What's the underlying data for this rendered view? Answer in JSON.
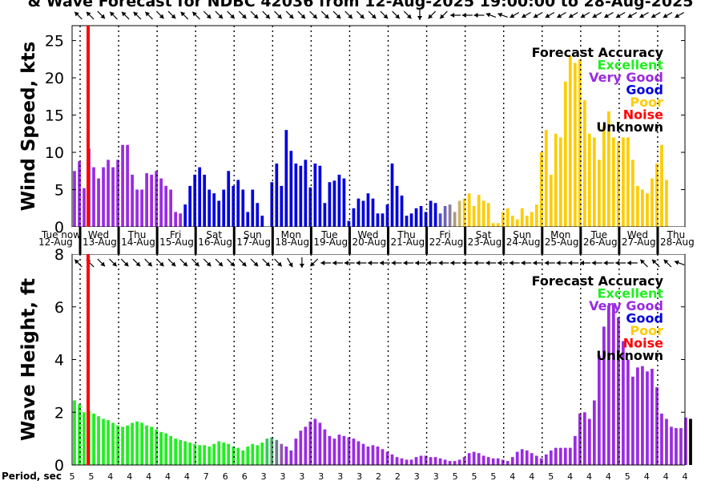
{
  "title": "& Wave Forecast for NDBC 42036 from 12-Aug-2025 19:00:00 to 28-Aug-2025",
  "legend": {
    "heading": "Forecast Accuracy",
    "items": [
      {
        "label": "Excellent",
        "color": "#22ee22"
      },
      {
        "label": "Very Good",
        "color": "#9a2be2"
      },
      {
        "label": "Good",
        "color": "#0000dd"
      },
      {
        "label": "Poor",
        "color": "#ffcc00"
      },
      {
        "label": "Noise",
        "color": "#ff0000"
      },
      {
        "label": "Unknown",
        "color": "#000000"
      }
    ]
  },
  "period_label": "Period, sec",
  "now_marker": {
    "label": "Tue now",
    "color": "#ff0000",
    "time_hours": 10
  },
  "x_axis": {
    "start_hours": 0,
    "end_hours": 382,
    "day_boundaries_hours": [
      5,
      29,
      53,
      77,
      101,
      125,
      149,
      173,
      197,
      221,
      245,
      269,
      293,
      317,
      341,
      365
    ],
    "tick_labels": [
      {
        "hours": 0,
        "day": "Tue",
        "date": "12-Aug"
      },
      {
        "hours": 5,
        "day": "Wed",
        "date": "13-Aug"
      },
      {
        "hours": 29,
        "day": "Thu",
        "date": "14-Aug"
      },
      {
        "hours": 53,
        "day": "Fri",
        "date": "15-Aug"
      },
      {
        "hours": 77,
        "day": "Sat",
        "date": "16-Aug"
      },
      {
        "hours": 101,
        "day": "Sun",
        "date": "17-Aug"
      },
      {
        "hours": 125,
        "day": "Mon",
        "date": "18-Aug"
      },
      {
        "hours": 149,
        "day": "Tue",
        "date": "19-Aug"
      },
      {
        "hours": 173,
        "day": "Wed",
        "date": "20-Aug"
      },
      {
        "hours": 197,
        "day": "Thu",
        "date": "21-Aug"
      },
      {
        "hours": 221,
        "day": "Fri",
        "date": "22-Aug"
      },
      {
        "hours": 245,
        "day": "Sat",
        "date": "23-Aug"
      },
      {
        "hours": 269,
        "day": "Sun",
        "date": "24-Aug"
      },
      {
        "hours": 293,
        "day": "Mon",
        "date": "25-Aug"
      },
      {
        "hours": 317,
        "day": "Tue",
        "date": "26-Aug"
      },
      {
        "hours": 341,
        "day": "Wed",
        "date": "27-Aug"
      },
      {
        "hours": 365,
        "day": "Thu",
        "date": "28-Aug"
      }
    ]
  },
  "chart_data": [
    {
      "type": "bar",
      "title": "",
      "xlabel": "",
      "ylabel": "Wind Speed, kts",
      "ylim": [
        0,
        27
      ],
      "yticks": [
        0,
        5,
        10,
        15,
        20,
        25
      ],
      "grid": "dotted vertical day lines",
      "legend_position": "top-right",
      "bar_interval_hours": 3,
      "values": [
        7.5,
        8.8,
        5.2,
        10.5,
        8.0,
        6.5,
        8.0,
        9.0,
        8.0,
        9.0,
        11.0,
        11.0,
        7.0,
        5.0,
        5.0,
        7.2,
        7.0,
        7.5,
        6.5,
        5.5,
        5.0,
        2.0,
        1.8,
        3.0,
        5.5,
        7.0,
        8.0,
        7.0,
        5.0,
        4.5,
        3.5,
        5.0,
        7.5,
        5.5,
        6.3,
        5.0,
        2.0,
        5.0,
        3.2,
        1.5,
        0.0,
        6.0,
        8.5,
        5.5,
        13.0,
        10.2,
        8.5,
        8.2,
        9.0,
        5.3,
        8.5,
        8.2,
        3.2,
        6.0,
        6.2,
        7.0,
        6.5,
        0.8,
        2.5,
        3.8,
        3.5,
        4.5,
        3.8,
        1.8,
        1.8,
        3.0,
        8.5,
        5.5,
        4.2,
        1.5,
        1.8,
        2.5,
        2.8,
        2.0,
        3.5,
        3.2,
        1.8,
        2.8,
        3.0,
        2.0,
        3.5,
        3.8,
        4.5,
        2.8,
        4.3,
        3.5,
        3.2,
        0.5,
        0.5,
        2.0,
        2.5,
        1.5,
        1.0,
        2.5,
        1.5,
        2.0,
        3.0,
        10.0,
        13.0,
        7.0,
        12.5,
        12.0,
        19.5,
        23.0,
        22.0,
        22.5,
        17.0,
        12.5,
        12.0,
        9.0,
        13.5,
        15.5,
        12.0,
        11.5,
        12.0,
        12.0,
        9.0,
        5.5,
        5.0,
        4.5,
        6.5,
        8.5,
        11.0,
        6.3
      ],
      "colors": [
        "#9a2be2",
        "#9a2be2",
        "#9a2be2",
        "#9a2be2",
        "#9a2be2",
        "#9a2be2",
        "#9a2be2",
        "#9a2be2",
        "#9a2be2",
        "#9a2be2",
        "#9a2be2",
        "#9a2be2",
        "#9a2be2",
        "#9a2be2",
        "#9a2be2",
        "#9a2be2",
        "#9a2be2",
        "#9a2be2",
        "#9a2be2",
        "#9a2be2",
        "#9a2be2",
        "#9a2be2",
        "#9a2be2",
        "#0000dd",
        "#0000dd",
        "#0000dd",
        "#0000dd",
        "#0000dd",
        "#0000dd",
        "#0000dd",
        "#0000dd",
        "#0000dd",
        "#0000dd",
        "#0000dd",
        "#0000dd",
        "#0000dd",
        "#0000dd",
        "#0000dd",
        "#0000dd",
        "#0000dd",
        "#0000dd",
        "#0000dd",
        "#0000dd",
        "#0000dd",
        "#0000dd",
        "#0000dd",
        "#0000dd",
        "#0000dd",
        "#0000dd",
        "#0000dd",
        "#0000dd",
        "#0000dd",
        "#0000dd",
        "#0000dd",
        "#0000dd",
        "#0000dd",
        "#0000dd",
        "#0000dd",
        "#0000dd",
        "#0000dd",
        "#0000dd",
        "#0000dd",
        "#0000dd",
        "#0000dd",
        "#0000dd",
        "#0000dd",
        "#0000dd",
        "#0000dd",
        "#0000dd",
        "#0000dd",
        "#0000dd",
        "#0000dd",
        "#0000dd",
        "#0000dd",
        "#0000dd",
        "#0000dd",
        "#4b4bd8",
        "#6b62bb",
        "#8b7e9d",
        "#ab9a80",
        "#cbb562",
        "#ffcc00",
        "#ffcc00",
        "#ffcc00",
        "#ffcc00",
        "#ffcc00",
        "#ffcc00",
        "#ffcc00",
        "#ffcc00",
        "#ffcc00",
        "#ffcc00",
        "#ffcc00",
        "#ffcc00",
        "#ffcc00",
        "#ffcc00",
        "#ffcc00",
        "#ffcc00",
        "#ffcc00",
        "#ffcc00",
        "#ffcc00",
        "#ffcc00",
        "#ffcc00",
        "#ffcc00",
        "#ffcc00",
        "#ffcc00",
        "#ffcc00",
        "#ffcc00",
        "#ffcc00",
        "#ffcc00",
        "#ffcc00",
        "#ffcc00",
        "#ffcc00",
        "#ffcc00",
        "#ffcc00",
        "#ffcc00",
        "#ffcc00",
        "#ffcc00",
        "#ffcc00",
        "#ffcc00",
        "#ffcc00",
        "#ffcc00",
        "#ffcc00",
        "#ffcc00",
        "#ffcc00",
        "#ffcc00",
        "#ffcc00",
        "#ffcc00"
      ],
      "wind_direction_arrows_deg": [
        225,
        225,
        45,
        225,
        225,
        225,
        225,
        45,
        45,
        225,
        225,
        45,
        45,
        45,
        45,
        45,
        45,
        45,
        45,
        45,
        45,
        45,
        45,
        45,
        45,
        45,
        45,
        45,
        45,
        90,
        135,
        135,
        180,
        180,
        180,
        200,
        200,
        150,
        150,
        150,
        150,
        150,
        150,
        150,
        150,
        150,
        150,
        150,
        150,
        150,
        150,
        150
      ]
    },
    {
      "type": "bar",
      "title": "",
      "xlabel": "",
      "ylabel": "Wave Height, ft",
      "ylim": [
        0,
        8
      ],
      "yticks": [
        0,
        2,
        4,
        6,
        8
      ],
      "grid": "dotted vertical day lines",
      "legend_position": "top-right",
      "bar_interval_hours": 3,
      "values": [
        2.45,
        2.3,
        2.0,
        2.05,
        1.95,
        1.85,
        1.75,
        1.7,
        1.6,
        1.5,
        1.45,
        1.5,
        1.6,
        1.65,
        1.6,
        1.5,
        1.45,
        1.35,
        1.25,
        1.2,
        1.1,
        1.0,
        0.95,
        0.9,
        0.85,
        0.8,
        0.75,
        0.75,
        0.7,
        0.8,
        0.9,
        0.85,
        0.8,
        0.7,
        0.65,
        0.55,
        0.7,
        0.8,
        0.75,
        0.85,
        1.0,
        1.05,
        0.95,
        0.8,
        0.7,
        0.55,
        1.0,
        1.3,
        1.45,
        1.65,
        1.75,
        1.6,
        1.35,
        1.1,
        1.0,
        1.15,
        1.1,
        1.05,
        1.0,
        0.9,
        0.8,
        0.7,
        0.75,
        0.7,
        0.6,
        0.5,
        0.4,
        0.3,
        0.25,
        0.2,
        0.2,
        0.3,
        0.35,
        0.35,
        0.3,
        0.3,
        0.25,
        0.2,
        0.15,
        0.15,
        0.2,
        0.3,
        0.45,
        0.5,
        0.45,
        0.35,
        0.3,
        0.25,
        0.25,
        0.2,
        0.15,
        0.3,
        0.5,
        0.6,
        0.55,
        0.45,
        0.35,
        0.25,
        0.4,
        0.55,
        0.65,
        0.65,
        0.65,
        0.65,
        1.1,
        1.95,
        2.0,
        1.75,
        2.45,
        4.15,
        5.25,
        6.05,
        6.1,
        5.6,
        4.7,
        4.0,
        3.35,
        3.7,
        3.75,
        3.55,
        3.65,
        2.95,
        1.95,
        1.75,
        1.45,
        1.4,
        1.4,
        1.8,
        1.75
      ],
      "colors": [
        "#22ee22",
        "#22ee22",
        "#22ee22",
        "#22ee22",
        "#22ee22",
        "#22ee22",
        "#22ee22",
        "#22ee22",
        "#22ee22",
        "#22ee22",
        "#22ee22",
        "#22ee22",
        "#22ee22",
        "#22ee22",
        "#22ee22",
        "#22ee22",
        "#22ee22",
        "#22ee22",
        "#22ee22",
        "#22ee22",
        "#22ee22",
        "#22ee22",
        "#22ee22",
        "#22ee22",
        "#22ee22",
        "#22ee22",
        "#22ee22",
        "#22ee22",
        "#22ee22",
        "#22ee22",
        "#22ee22",
        "#22ee22",
        "#22ee22",
        "#22ee22",
        "#22ee22",
        "#22ee22",
        "#22ee22",
        "#22ee22",
        "#22ee22",
        "#22ee22",
        "#2fcc55",
        "#4ea66f",
        "#6d7f8a",
        "#8c58a4",
        "#9a2be2",
        "#9a2be2",
        "#9a2be2",
        "#9a2be2",
        "#9a2be2",
        "#9a2be2",
        "#9a2be2",
        "#9a2be2",
        "#9a2be2",
        "#9a2be2",
        "#9a2be2",
        "#9a2be2",
        "#9a2be2",
        "#9a2be2",
        "#9a2be2",
        "#9a2be2",
        "#9a2be2",
        "#9a2be2",
        "#9a2be2",
        "#9a2be2",
        "#9a2be2",
        "#9a2be2",
        "#9a2be2",
        "#9a2be2",
        "#9a2be2",
        "#9a2be2",
        "#9a2be2",
        "#9a2be2",
        "#9a2be2",
        "#9a2be2",
        "#9a2be2",
        "#9a2be2",
        "#9a2be2",
        "#9a2be2",
        "#9a2be2",
        "#9a2be2",
        "#9a2be2",
        "#9a2be2",
        "#9a2be2",
        "#9a2be2",
        "#9a2be2",
        "#9a2be2",
        "#9a2be2",
        "#9a2be2",
        "#9a2be2",
        "#9a2be2",
        "#9a2be2",
        "#9a2be2",
        "#9a2be2",
        "#9a2be2",
        "#9a2be2",
        "#9a2be2",
        "#9a2be2",
        "#9a2be2",
        "#9a2be2",
        "#9a2be2",
        "#9a2be2",
        "#9a2be2",
        "#9a2be2",
        "#9a2be2",
        "#9a2be2",
        "#9a2be2",
        "#9a2be2",
        "#9a2be2",
        "#9a2be2",
        "#9a2be2",
        "#9a2be2",
        "#9a2be2",
        "#9a2be2",
        "#9a2be2",
        "#9a2be2",
        "#9a2be2",
        "#9a2be2",
        "#9a2be2",
        "#9a2be2",
        "#9a2be2",
        "#9a2be2",
        "#9a2be2",
        "#9a2be2",
        "#9a2be2",
        "#9a2be2",
        "#9a2be2",
        "#9a2be2",
        "#9a2be2"
      ],
      "wave_direction_arrows_deg": [
        225,
        225,
        45,
        45,
        45,
        45,
        45,
        45,
        45,
        45,
        45,
        45,
        45,
        45,
        45,
        45,
        45,
        45,
        60,
        90,
        135,
        180,
        180,
        180,
        180,
        180,
        180,
        180,
        180,
        180,
        180,
        180,
        180,
        180,
        180,
        180,
        180,
        180,
        180,
        180,
        180,
        180,
        180,
        180,
        180,
        180,
        180,
        180,
        225,
        225,
        225,
        200
      ],
      "period_sec": [
        "5",
        "5",
        "4",
        "4",
        "4",
        "4",
        "4",
        "7",
        "6",
        "6",
        "3",
        "3",
        "3",
        "3",
        "3",
        "3",
        "3",
        "3",
        "2",
        "2",
        "3",
        "3",
        "3",
        "3",
        "5",
        "5",
        "5",
        "4",
        "4",
        "5",
        "4",
        "4",
        "4",
        "5",
        "4",
        "4",
        "4",
        "4",
        "4",
        "4",
        "4",
        "4",
        "4",
        "4",
        "4",
        "4",
        "4",
        "4",
        "4",
        "4",
        "4",
        "4",
        "4",
        "4",
        "4",
        "4",
        "4",
        "4",
        "4",
        "4",
        "4",
        "4",
        "4",
        "4",
        "4",
        "4",
        "4",
        "4",
        "4",
        "4",
        "4",
        "4",
        "4",
        "4",
        "4",
        "4",
        "4",
        "4",
        "4",
        "4",
        "4",
        "4",
        "4",
        "4",
        "4",
        "4",
        "4",
        "4",
        "4",
        "4",
        "4",
        "4",
        "4",
        "4",
        "4",
        "4",
        "4",
        "4",
        "4",
        "4",
        "4",
        "4",
        "4",
        "4",
        "4",
        "4",
        "4",
        "4",
        "4",
        "4",
        "4",
        "4",
        "4",
        "4",
        "4",
        "4",
        "4",
        "4",
        "4",
        "4",
        "4",
        "4",
        "4",
        "4",
        "4",
        "4",
        "4",
        "4"
      ],
      "period_label_values": [
        "5",
        "5",
        "4",
        "4",
        "4",
        "4",
        "4",
        "7",
        "6",
        "6",
        "3",
        "3",
        "3",
        "3",
        "3",
        "3",
        "2",
        "2",
        "3",
        "3",
        "5",
        "5",
        "5",
        "4",
        "4",
        "5",
        "4",
        "4",
        "4",
        "5",
        "4",
        "4",
        "4"
      ]
    }
  ]
}
